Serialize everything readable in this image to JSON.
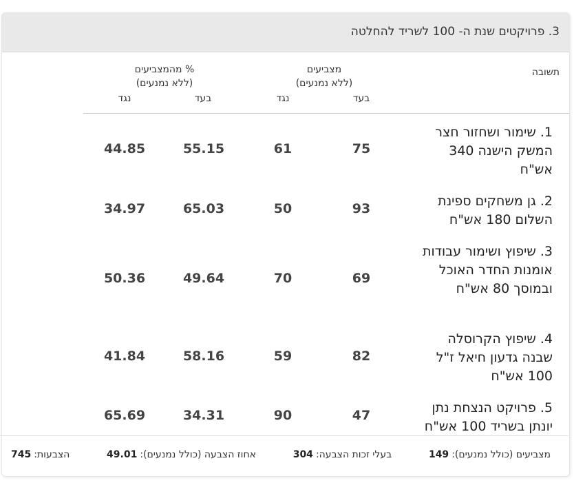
{
  "title": "3. פרויקטים שנת ה- 100 לשריד להחלטה",
  "headers": {
    "answer": "תשובה",
    "voters": "מצביעים",
    "voters_sub": "(ללא נמנעים)",
    "percent": "% מהמצביעים",
    "percent_sub": "(ללא נמנעים)",
    "for": "בעד",
    "against": "נגד"
  },
  "rows": [
    {
      "answer": "1. שימור ושחזור חצר המשק הישנה 340 אש\"ח",
      "votes_for": "75",
      "votes_against": "61",
      "pct_for": "55.15",
      "pct_against": "44.85"
    },
    {
      "answer": "2. גן משחקים ספינת השלום 180 אש\"ח",
      "votes_for": "93",
      "votes_against": "50",
      "pct_for": "65.03",
      "pct_against": "34.97"
    },
    {
      "answer": "3. שיפוץ ושימור עבודות אומנות החדר האוכל ובמוסך 80 אש\"ח",
      "votes_for": "69",
      "votes_against": "70",
      "pct_for": "49.64",
      "pct_against": "50.36"
    },
    {
      "answer": "4. שיפוץ הקרוסלה שבנה גדעון חיאל ז\"ל 100 אש\"ח",
      "votes_for": "82",
      "votes_against": "59",
      "pct_for": "58.16",
      "pct_against": "41.84"
    },
    {
      "answer": "5. פרויקט הנצחת נתן יונתן בשריד 100 אש\"ח",
      "votes_for": "47",
      "votes_against": "90",
      "pct_for": "34.31",
      "pct_against": "65.69"
    }
  ],
  "footer": {
    "voters_label": "מצביעים (כולל נמנעים):",
    "voters_value": "149",
    "eligible_label": "בעלי זכות הצבעה:",
    "eligible_value": "304",
    "turnout_label": "אחוז הצבעה (כולל נמנעים):",
    "turnout_value": "49.01",
    "votes_label": "הצבעות:",
    "votes_value": "745"
  }
}
